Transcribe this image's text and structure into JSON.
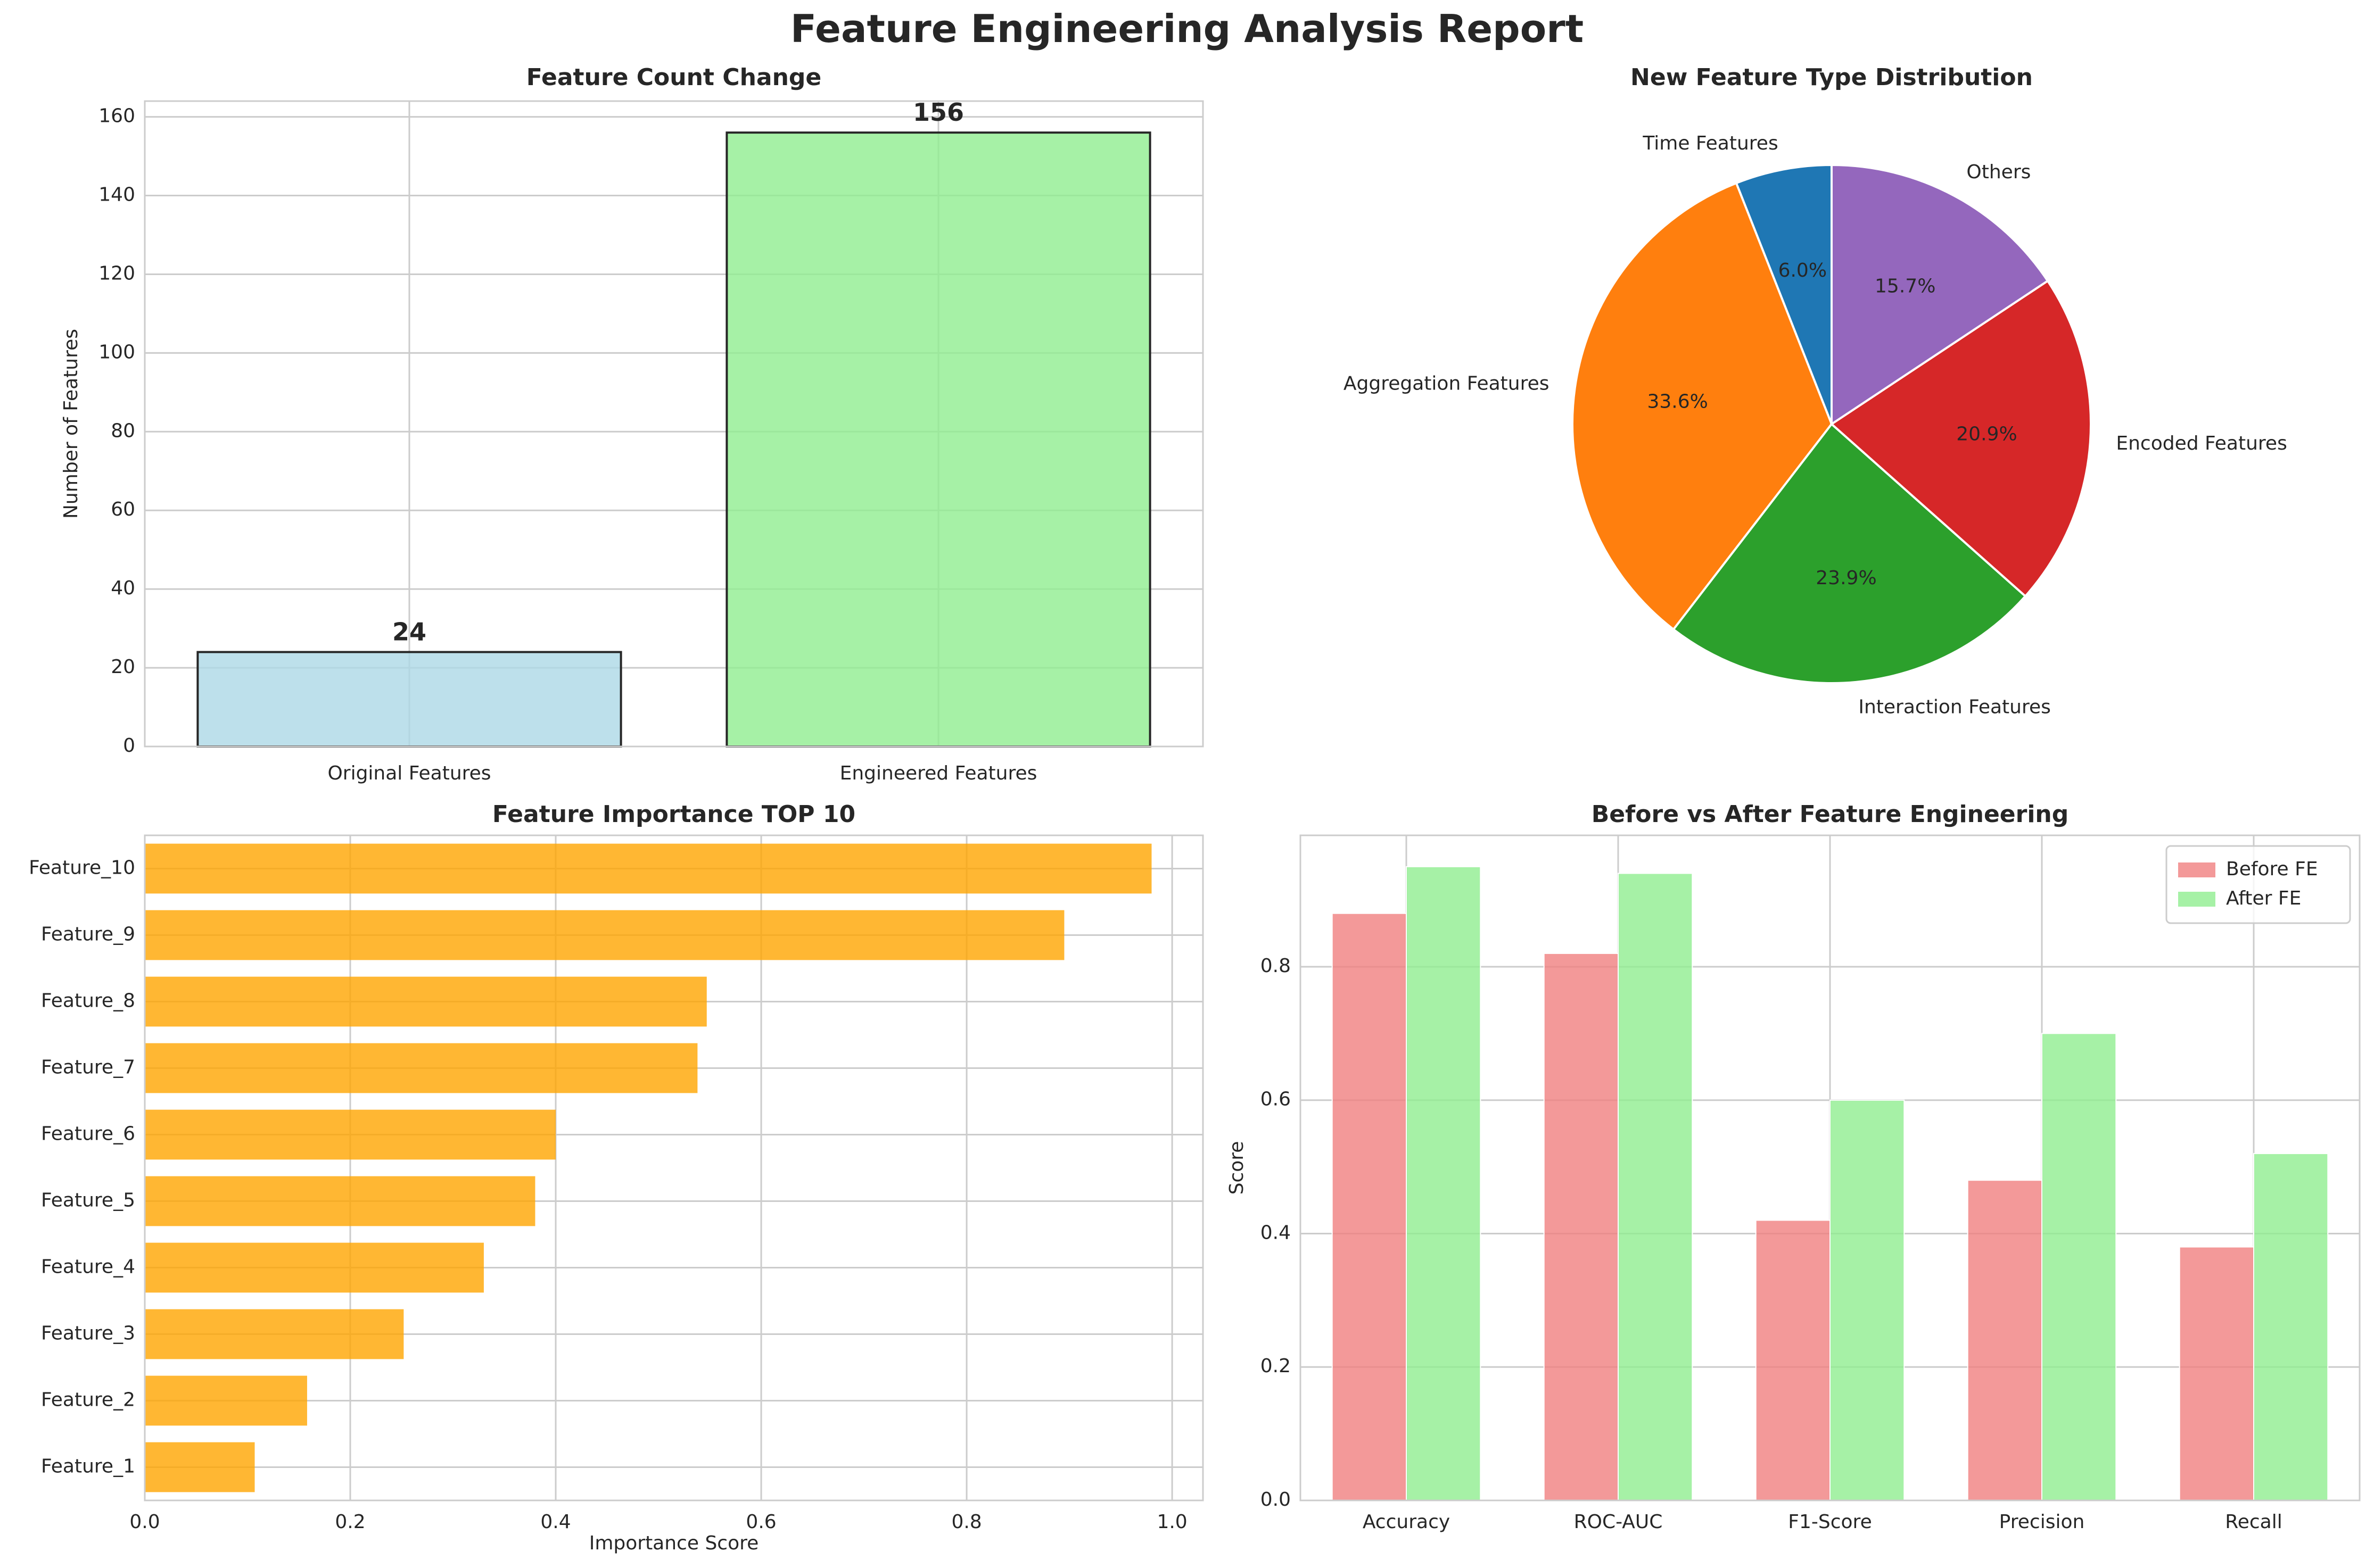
{
  "suptitle": "Feature Engineering Analysis Report",
  "colors": {
    "grid": "#cccccc",
    "axis": "#cccccc",
    "text": "#262626"
  },
  "chart_data": [
    {
      "id": "bar",
      "type": "bar",
      "title": "Feature Count Change",
      "xlabel": "",
      "ylabel": "Number of Features",
      "ylim": [
        0,
        164
      ],
      "yticks": [
        0,
        20,
        40,
        60,
        80,
        100,
        120,
        140,
        160
      ],
      "categories": [
        "Original Features",
        "Engineered Features"
      ],
      "values": [
        24,
        156
      ],
      "data_labels": [
        "24",
        "156"
      ],
      "colors": [
        "#add8e6",
        "#90ee90"
      ],
      "edge_color": "#262626",
      "grid": true
    },
    {
      "id": "pie",
      "type": "pie",
      "title": "New Feature Type Distribution",
      "start_angle": 90,
      "direction": "counterclockwise",
      "slices": [
        {
          "label": "Time Features",
          "value": 6.0,
          "pct": "6.0%",
          "color": "#1f77b4"
        },
        {
          "label": "Aggregation Features",
          "value": 33.6,
          "pct": "33.6%",
          "color": "#ff7f0e"
        },
        {
          "label": "Interaction Features",
          "value": 23.9,
          "pct": "23.9%",
          "color": "#2ca02c"
        },
        {
          "label": "Encoded Features",
          "value": 20.9,
          "pct": "20.9%",
          "color": "#d62728"
        },
        {
          "label": "Others",
          "value": 15.7,
          "pct": "15.7%",
          "color": "#9467bd"
        }
      ]
    },
    {
      "id": "hbar",
      "type": "bar",
      "orientation": "horizontal",
      "title": "Feature Importance TOP 10",
      "xlabel": "Importance Score",
      "ylabel": "",
      "xlim": [
        0,
        1.03
      ],
      "xticks": [
        0.0,
        0.2,
        0.4,
        0.6,
        0.8,
        1.0
      ],
      "xtick_labels": [
        "0.0",
        "0.2",
        "0.4",
        "0.6",
        "0.8",
        "1.0"
      ],
      "categories": [
        "Feature_1",
        "Feature_2",
        "Feature_3",
        "Feature_4",
        "Feature_5",
        "Feature_6",
        "Feature_7",
        "Feature_8",
        "Feature_9",
        "Feature_10"
      ],
      "values": [
        0.107,
        0.158,
        0.252,
        0.33,
        0.38,
        0.4,
        0.538,
        0.547,
        0.895,
        0.98
      ],
      "color": "#ffa500",
      "grid": true
    },
    {
      "id": "grouped",
      "type": "bar",
      "title": "Before vs After Feature Engineering",
      "xlabel": "",
      "ylabel": "Score",
      "ylim": [
        0,
        0.997
      ],
      "yticks": [
        0.0,
        0.2,
        0.4,
        0.6,
        0.8
      ],
      "ytick_labels": [
        "0.0",
        "0.2",
        "0.4",
        "0.6",
        "0.8"
      ],
      "categories": [
        "Accuracy",
        "ROC-AUC",
        "F1-Score",
        "Precision",
        "Recall"
      ],
      "series": [
        {
          "name": "Before FE",
          "values": [
            0.88,
            0.82,
            0.42,
            0.48,
            0.38
          ],
          "color": "#f08080"
        },
        {
          "name": "After FE",
          "values": [
            0.95,
            0.94,
            0.6,
            0.7,
            0.52
          ],
          "color": "#90ee90"
        }
      ],
      "legend": "top-right",
      "grid": true
    }
  ]
}
